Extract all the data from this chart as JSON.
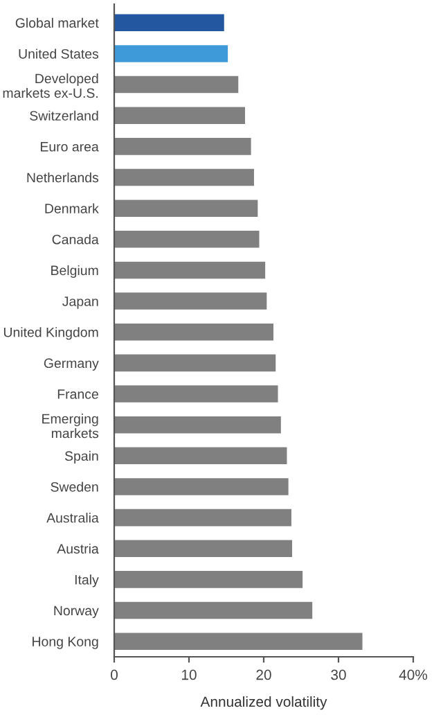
{
  "chart_data": {
    "type": "bar",
    "orientation": "horizontal",
    "xlabel": "Annualized volatility",
    "categories": [
      "Global market",
      "United States",
      "Developed\nmarkets ex-U.S.",
      "Switzerland",
      "Euro area",
      "Netherlands",
      "Denmark",
      "Canada",
      "Belgium",
      "Japan",
      "United Kingdom",
      "Germany",
      "France",
      "Emerging\nmarkets",
      "Spain",
      "Sweden",
      "Australia",
      "Austria",
      "Italy",
      "Norway",
      "Hong Kong"
    ],
    "values": [
      14.7,
      15.2,
      16.6,
      17.5,
      18.3,
      18.7,
      19.2,
      19.4,
      20.2,
      20.4,
      21.3,
      21.6,
      21.9,
      22.3,
      23.1,
      23.3,
      23.7,
      23.8,
      25.2,
      26.5,
      33.2
    ],
    "colors": [
      "#23579f",
      "#3e9ad8",
      "#808080",
      "#808080",
      "#808080",
      "#808080",
      "#808080",
      "#808080",
      "#808080",
      "#808080",
      "#808080",
      "#808080",
      "#808080",
      "#808080",
      "#808080",
      "#808080",
      "#808080",
      "#808080",
      "#808080",
      "#808080",
      "#808080"
    ],
    "xlim": [
      0,
      40
    ],
    "xticks": [
      0,
      10,
      20,
      30,
      {
        "value": 40,
        "label": "40%"
      }
    ],
    "grid": false,
    "legend": false
  }
}
